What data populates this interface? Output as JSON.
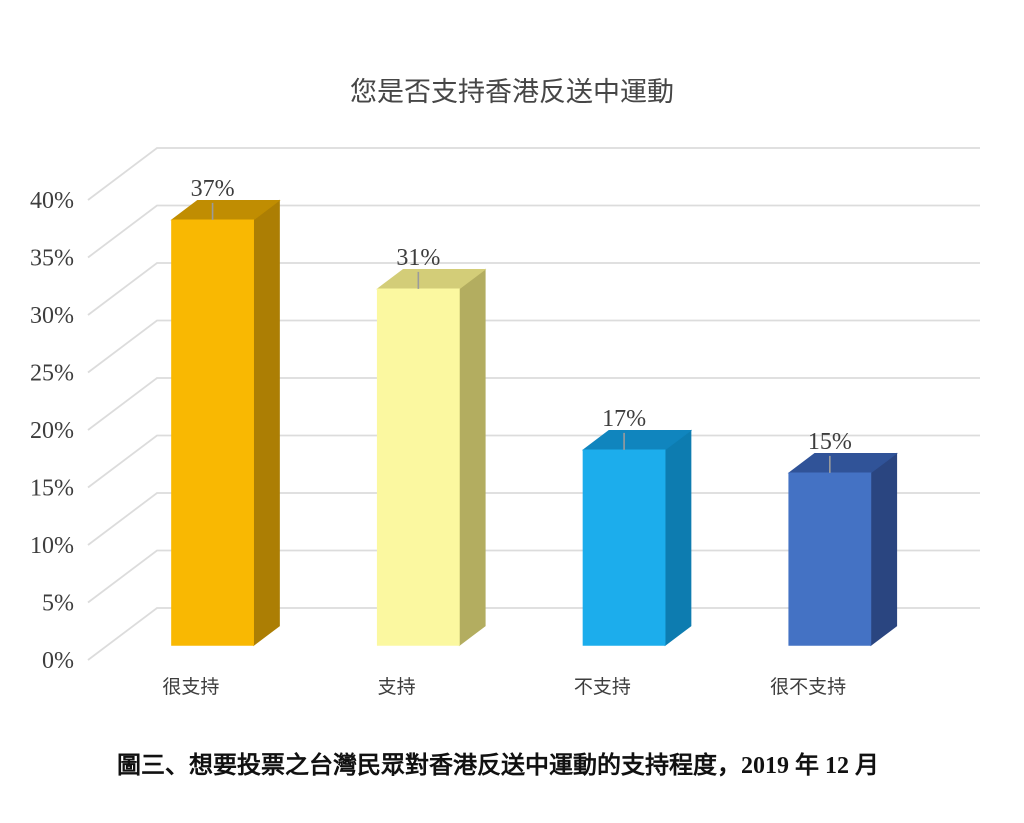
{
  "chart_data": {
    "type": "bar",
    "style": "3d-column",
    "title": "您是否支持香港反送中運動",
    "categories": [
      "很支持",
      "支持",
      "不支持",
      "很不支持"
    ],
    "values": [
      37,
      31,
      17,
      15
    ],
    "data_labels": [
      "37%",
      "31%",
      "17%",
      "15%"
    ],
    "ytick_labels": [
      "0%",
      "5%",
      "10%",
      "15%",
      "20%",
      "25%",
      "30%",
      "35%",
      "40%"
    ],
    "ylim": [
      0,
      40
    ],
    "ytick_step": 5,
    "grid": true,
    "legend": "none",
    "bar_colors": [
      {
        "front": "#F9B802",
        "top": "#C08D02",
        "side": "#AC7E04"
      },
      {
        "front": "#FBF8A0",
        "top": "#D3CD78",
        "side": "#B3AD60"
      },
      {
        "front": "#1CADEC",
        "top": "#1085BE",
        "side": "#0D7CB0"
      },
      {
        "front": "#4472C4",
        "top": "#305398",
        "side": "#2A4580"
      }
    ],
    "gridline_color": "#DCDCDC",
    "leader_color": "#9B9B9B"
  },
  "caption": "圖三、想要投票之台灣民眾對香港反送中運動的支持程度，2019 年 12 月"
}
